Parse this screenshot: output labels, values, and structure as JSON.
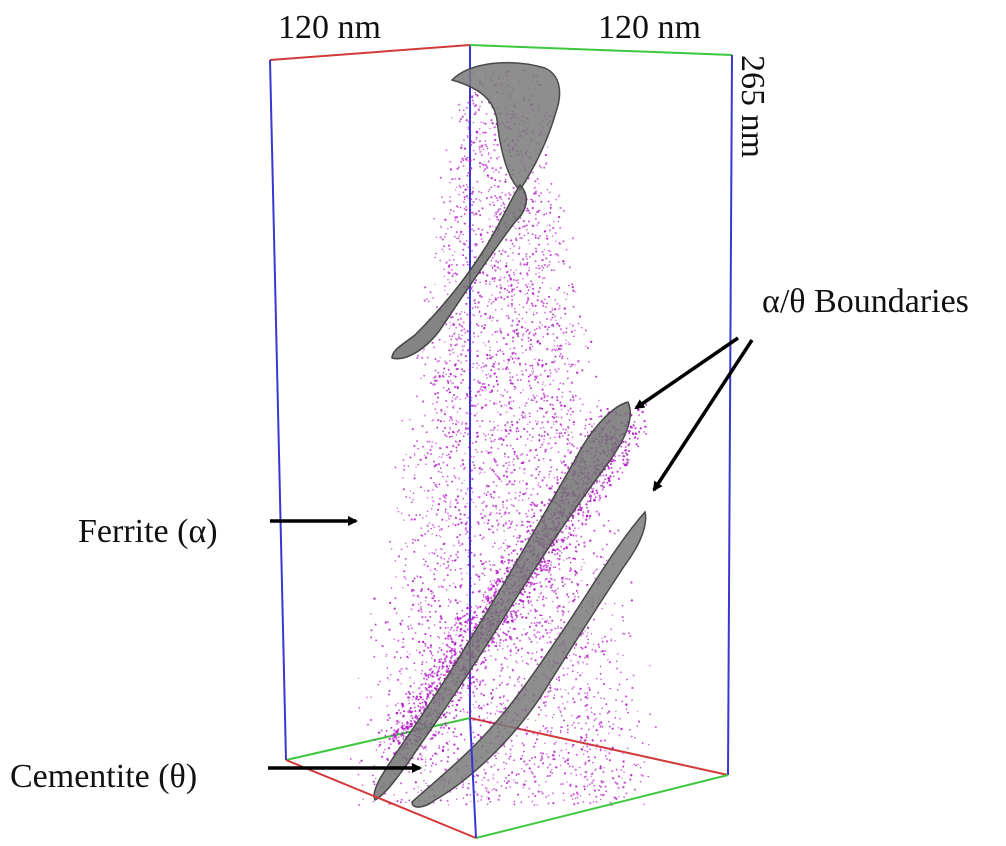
{
  "dimensions": {
    "width_label_left": "120 nm",
    "width_label_right": "120 nm",
    "height_label": "265 nm"
  },
  "annotations": {
    "ferrite": "Ferrite (α)",
    "cementite": "Cementite (θ)",
    "boundaries": "α/θ Boundaries"
  },
  "colors": {
    "atoms": "#b41cc8",
    "isosurface": "#6e6e6e",
    "box_red": "#d23a3a",
    "box_green": "#3cc83c",
    "box_blue": "#3838d0",
    "text": "#111111"
  }
}
